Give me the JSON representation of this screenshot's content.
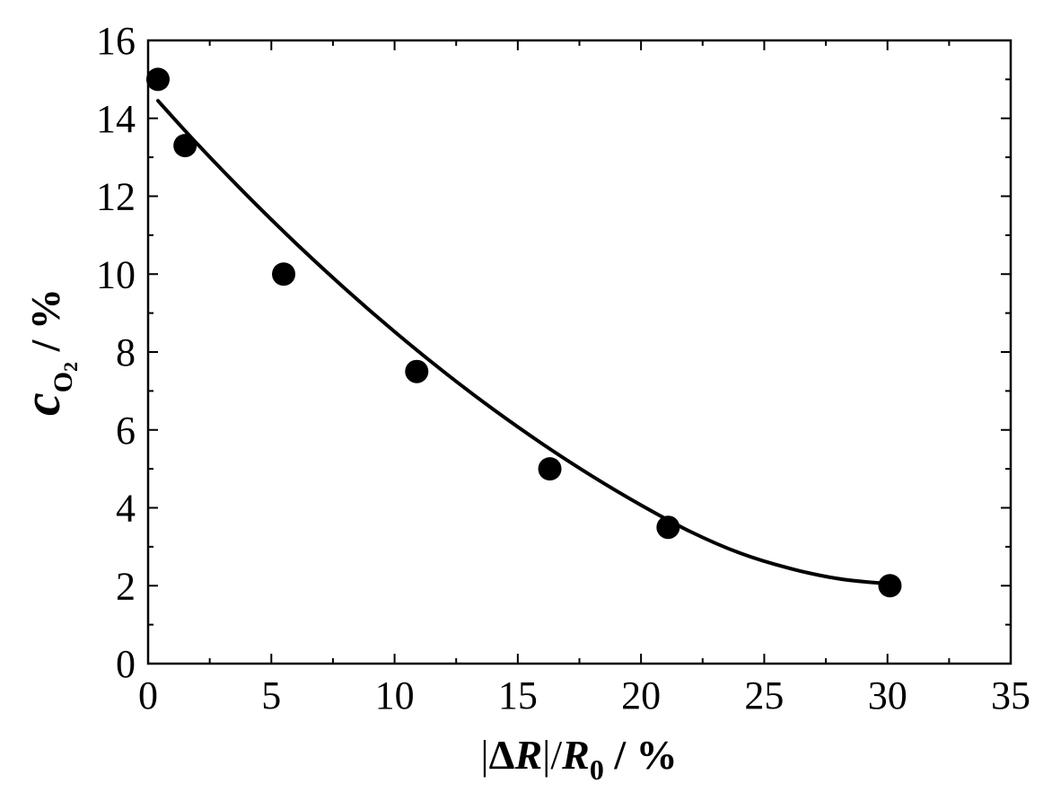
{
  "chart_data": {
    "type": "scatter",
    "title": "",
    "x_axis": {
      "label_parts": {
        "bar_open": "|",
        "delta": "Δ",
        "var": "R",
        "bar_close": "|/",
        "var2": "R",
        "subscript": "0",
        "unit": " / %"
      },
      "range": [
        0,
        35
      ],
      "ticks": [
        0,
        5,
        10,
        15,
        20,
        25,
        30,
        35
      ],
      "tick_labels": [
        "0",
        "5",
        "10",
        "15",
        "20",
        "25",
        "30",
        "35"
      ],
      "minor_step": 2.5
    },
    "y_axis": {
      "label_parts": {
        "var": "c",
        "subscript": "O",
        "subscript2": "2",
        "unit": " / %"
      },
      "range": [
        0,
        16
      ],
      "ticks": [
        0,
        2,
        4,
        6,
        8,
        10,
        12,
        14,
        16
      ],
      "tick_labels": [
        "0",
        "2",
        "4",
        "6",
        "8",
        "10",
        "12",
        "14",
        "16"
      ],
      "minor_step": 1
    },
    "series": [
      {
        "kind": "points",
        "marker": "filled-circle",
        "color": "#000000",
        "x": [
          0.4,
          1.5,
          5.5,
          10.9,
          16.3,
          21.1,
          30.1
        ],
        "y": [
          15.0,
          13.3,
          10.0,
          7.5,
          5.0,
          3.5,
          2.0
        ]
      },
      {
        "kind": "fit-curve",
        "color": "#000000",
        "x": [
          0.4,
          2,
          4,
          6,
          8,
          10,
          12,
          14,
          16,
          18,
          20,
          22,
          24,
          26,
          28,
          29.8
        ],
        "y": [
          14.45,
          13.34,
          12.03,
          10.79,
          9.62,
          8.52,
          7.49,
          6.53,
          5.64,
          4.82,
          4.07,
          3.39,
          2.84,
          2.45,
          2.18,
          2.06
        ]
      }
    ],
    "grid": false,
    "legend": "none"
  }
}
